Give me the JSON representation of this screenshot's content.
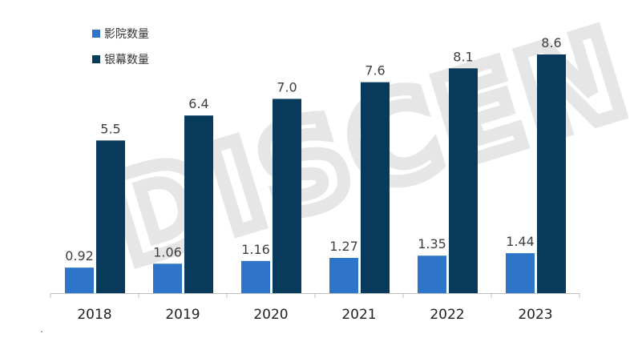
{
  "chart_data": {
    "type": "bar",
    "categories": [
      "2018",
      "2019",
      "2020",
      "2021",
      "2022",
      "2023"
    ],
    "series": [
      {
        "name": "影院数量",
        "color": "#2e75c9",
        "values": [
          0.92,
          1.06,
          1.16,
          1.27,
          1.35,
          1.44
        ],
        "labels": [
          "0.92",
          "1.06",
          "1.16",
          "1.27",
          "1.35",
          "1.44"
        ]
      },
      {
        "name": "银幕数量",
        "color": "#083a5c",
        "values": [
          5.5,
          6.4,
          7.0,
          7.6,
          8.1,
          8.6
        ],
        "labels": [
          "5.5",
          "6.4",
          "7.0",
          "7.6",
          "8.1",
          "8.6"
        ]
      }
    ],
    "title": "",
    "xlabel": "",
    "ylabel": "",
    "ylim": [
      0,
      8.6
    ],
    "grid": false,
    "legend_position": "top-left",
    "data_labels": true
  },
  "watermark": {
    "text": "DISCEN",
    "color": "#e3e3e3"
  }
}
